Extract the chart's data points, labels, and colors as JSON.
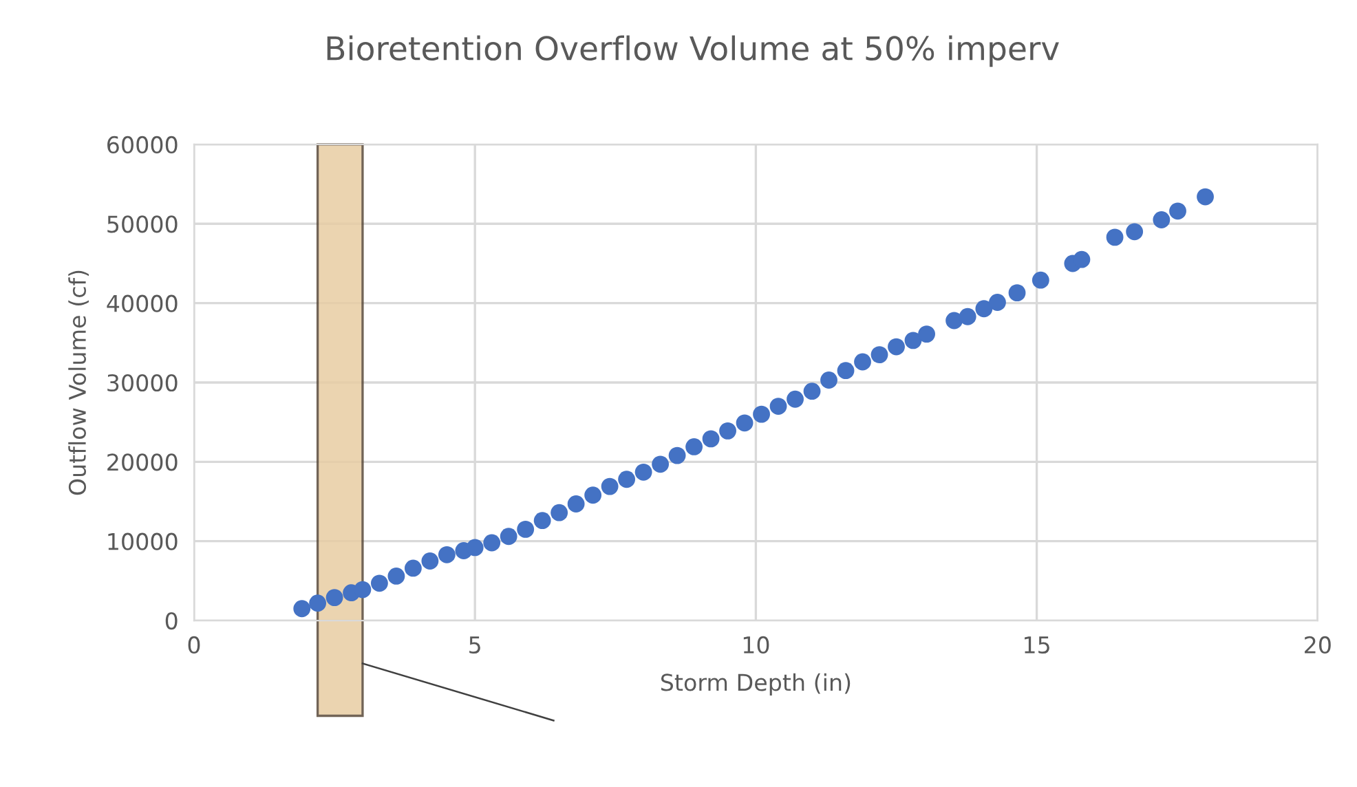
{
  "chart_data": {
    "type": "scatter",
    "title": "Bioretention Overflow Volume at 50% imperv",
    "xlabel": "Storm Depth (in)",
    "ylabel": "Outflow Volume (cf)",
    "series": [
      {
        "color": "#4472c4",
        "x": [
          1.92,
          2.2,
          2.5,
          2.8,
          3.0,
          3.3,
          3.6,
          3.9,
          4.2,
          4.5,
          4.8,
          5.0,
          5.3,
          5.6,
          5.9,
          6.2,
          6.5,
          6.8,
          7.1,
          7.4,
          7.7,
          8.0,
          8.3,
          8.6,
          8.9,
          9.2,
          9.5,
          9.8,
          10.1,
          10.4,
          10.7,
          11.0,
          11.3,
          11.6,
          11.9,
          12.2,
          12.5,
          12.8,
          13.04,
          13.53,
          13.77,
          14.06,
          14.3,
          14.65,
          15.07,
          15.64,
          15.8,
          16.39,
          16.74,
          17.22,
          17.51,
          18.0
        ],
        "values": [
          1500,
          2200,
          2900,
          3500,
          3900,
          4700,
          5600,
          6600,
          7500,
          8300,
          8800,
          9200,
          9800,
          10600,
          11500,
          12600,
          13600,
          14700,
          15800,
          16900,
          17800,
          18700,
          19700,
          20800,
          21900,
          22900,
          23900,
          24900,
          26000,
          27000,
          27900,
          28900,
          30300,
          31500,
          32600,
          33500,
          34500,
          35300,
          36100,
          37800,
          38300,
          39300,
          40100,
          41300,
          42900,
          45000,
          45500,
          48300,
          49000,
          50500,
          51600,
          53400
        ]
      }
    ],
    "marker": "circle",
    "xlim": [
      0,
      20
    ],
    "xticks": [
      0,
      5,
      10,
      15,
      20
    ],
    "ylim": [
      0,
      60000
    ],
    "yticks": [
      0,
      10000,
      20000,
      30000,
      40000,
      50000,
      60000
    ],
    "grid": true,
    "bands": [
      {
        "axis": "x",
        "from": 2.2,
        "to": 3.0,
        "color": "#e8cda3"
      }
    ]
  }
}
